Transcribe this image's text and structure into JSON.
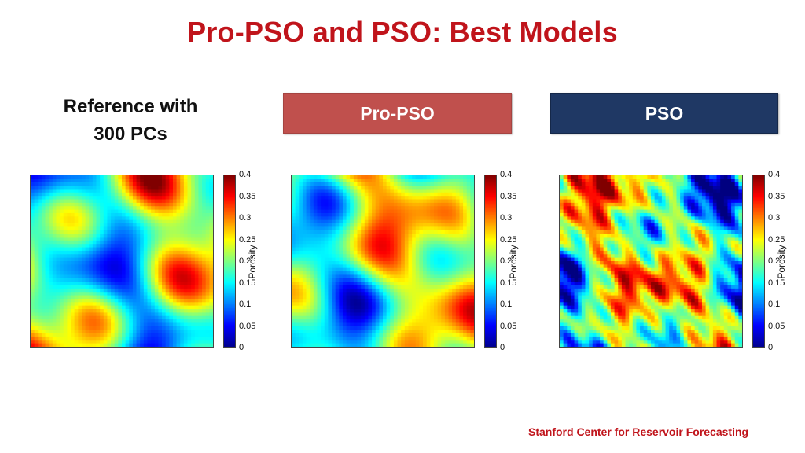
{
  "title": "Pro-PSO and PSO: Best Models",
  "reference_label_line1": "Reference with",
  "reference_label_line2": "300 PCs",
  "propso_label": "Pro-PSO",
  "pso_label": "PSO",
  "footer": "Stanford Center for Reservoir Forecasting",
  "colors": {
    "title": "#c0141b",
    "propso_box": "#c0504d",
    "pso_box": "#1f3864",
    "footer": "#c0141b"
  },
  "chart_data": [
    {
      "type": "heatmap",
      "panel": "reference",
      "colorbar_label": "Porosity",
      "colorbar_ticks": [
        "0.4",
        "0.35",
        "0.3",
        "0.25",
        "0.2",
        "0.15",
        "0.1",
        "0.05",
        "0"
      ],
      "range": [
        0,
        0.4
      ],
      "colormap": "jet"
    },
    {
      "type": "heatmap",
      "panel": "pro-pso",
      "colorbar_label": "Porosity",
      "colorbar_ticks": [
        "0.4",
        "0.35",
        "0.3",
        "0.25",
        "0.2",
        "0.15",
        "0.1",
        "0.05",
        "0"
      ],
      "range": [
        0,
        0.4
      ],
      "colormap": "jet"
    },
    {
      "type": "heatmap",
      "panel": "pso",
      "colorbar_label": "Porosity",
      "colorbar_ticks": [
        "0.4",
        "0.35",
        "0.3",
        "0.25",
        "0.2",
        "0.15",
        "0.1",
        "0.05",
        "0"
      ],
      "range": [
        0,
        0.4
      ],
      "colormap": "jet"
    }
  ]
}
